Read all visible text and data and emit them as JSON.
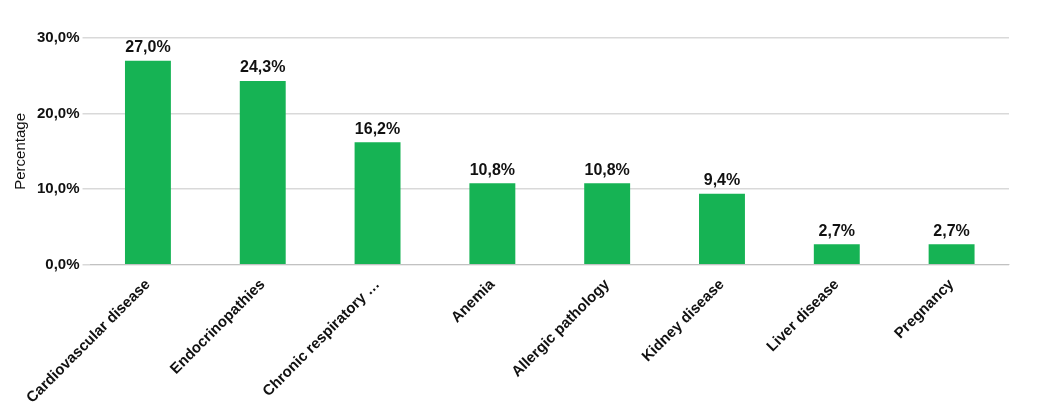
{
  "chart_data": {
    "type": "bar",
    "ylabel": "Percentage",
    "categories": [
      "Cardiovascular disease",
      "Endocrinopathies",
      "Chronic respiratory …",
      "Anemia",
      "Allergic pathology",
      "Kidney disease",
      "Liver disease",
      "Pregnancy"
    ],
    "values": [
      27.0,
      24.3,
      16.2,
      10.8,
      10.8,
      9.4,
      2.7,
      2.7
    ],
    "value_labels": [
      "27,0%",
      "24,3%",
      "16,2%",
      "10,8%",
      "10,8%",
      "9,4%",
      "2,7%",
      "2,7%"
    ],
    "color": "#16b354",
    "ylim": [
      0,
      30
    ],
    "yticks": [
      {
        "value": 0,
        "label": "0,0%"
      },
      {
        "value": 10,
        "label": "10,0%"
      },
      {
        "value": 20,
        "label": "20,0%"
      },
      {
        "value": 30,
        "label": "30,0%"
      }
    ],
    "grid": "y"
  }
}
